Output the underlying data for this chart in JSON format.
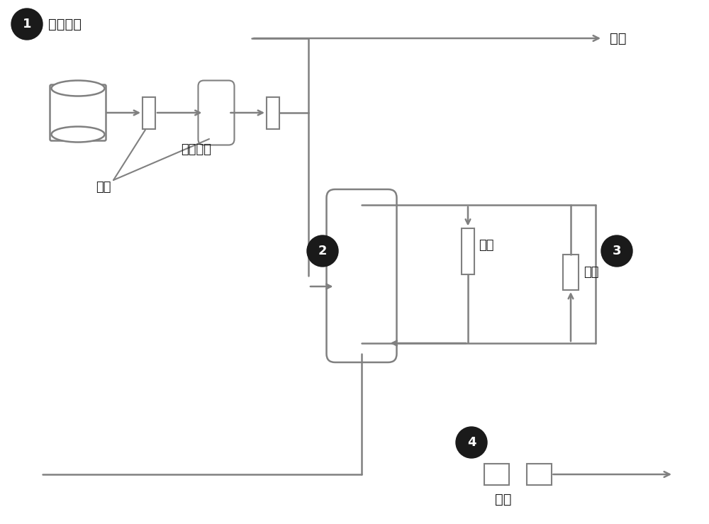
{
  "bg_color": "#ffffff",
  "line_color": "#808080",
  "text_color": "#1a1a1a",
  "dark_circle_color": "#1a1a1a",
  "labels": {
    "step1": "原料储存",
    "step2_label": "空气去除",
    "step3_label": "加热",
    "vacuum": "真空",
    "heat2": "加热",
    "heat3": "加热",
    "cool": "冷却"
  },
  "step_numbers": [
    "1",
    "2",
    "3",
    "4"
  ]
}
